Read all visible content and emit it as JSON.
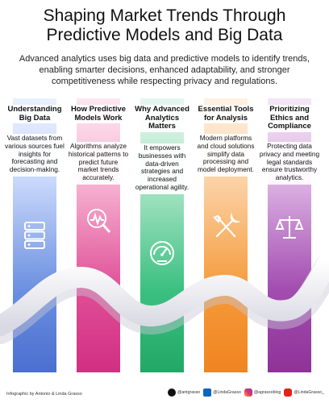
{
  "title_line1": "Shaping Market Trends Through",
  "title_line2": "Predictive Models and Big Data",
  "subtitle": "Advanced analytics uses big data and predictive models to identify trends, enabling smarter decisions, enhanced adaptability, and stronger competitiveness while respecting privacy and regulations.",
  "columns": [
    {
      "heading": "Understanding Big Data",
      "body": "Vast datasets from various sources fuel insights for forecasting and decision-making.",
      "icon": "database-icon",
      "color": "#5b7fd6"
    },
    {
      "heading": "How Predictive Models Work",
      "body": "Algorithms analyze historical patterns to predict future market trends accurately.",
      "icon": "magnifier-chart-icon",
      "color": "#d93c8c"
    },
    {
      "heading": "Why Advanced Analytics Matters",
      "body": "It empowers businesses with data-driven strategies and increased operational agility.",
      "icon": "gauge-icon",
      "color": "#2bb673"
    },
    {
      "heading": "Essential Tools for Analysis",
      "body": "Modern platforms and cloud solutions simplify data processing and model deployment.",
      "icon": "tools-icon",
      "color": "#f5922b"
    },
    {
      "heading": "Prioritizing Ethics and Compliance",
      "body": "Protecting data privacy and meeting legal standards ensure trustworthy analytics.",
      "icon": "scales-icon",
      "color": "#9b3fa8"
    }
  ],
  "footer": {
    "credit": "Infographic by Antonio & Linda Grasso",
    "handles": [
      {
        "icon": "x-icon",
        "text": "@antgrasso"
      },
      {
        "icon": "linkedin-icon",
        "text": "@LindaGrasso"
      },
      {
        "icon": "instagram-icon",
        "text": "@agrassoblog"
      },
      {
        "icon": "youtube-icon",
        "text": "@LindaGrasso_"
      }
    ]
  }
}
